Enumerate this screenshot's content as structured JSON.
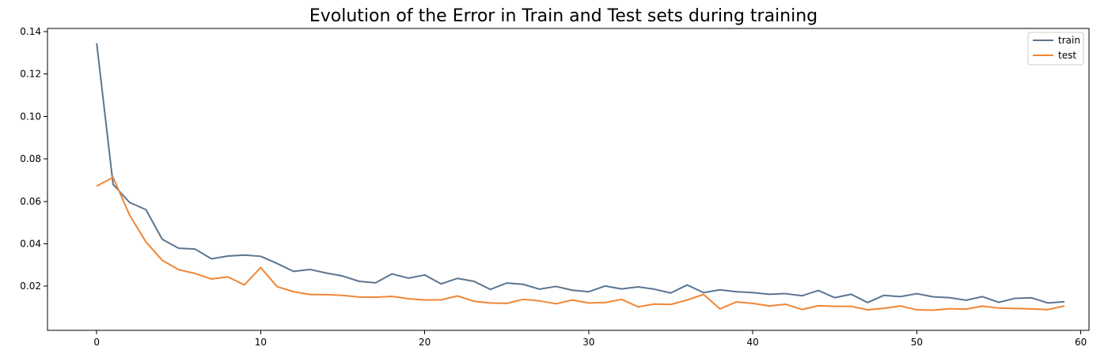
{
  "chart_data": {
    "type": "line",
    "title": "Evolution of the Error in Train and Test sets during training",
    "xlabel": "",
    "ylabel": "",
    "xlim": [
      -3,
      60.5
    ],
    "ylim": [
      -0.0008,
      0.1415
    ],
    "xticks": [
      0,
      10,
      20,
      30,
      40,
      50,
      60
    ],
    "xtick_labels": [
      "0",
      "10",
      "20",
      "30",
      "40",
      "50",
      "60"
    ],
    "yticks": [
      0.02,
      0.04,
      0.06,
      0.08,
      0.1,
      0.12,
      0.14
    ],
    "ytick_labels": [
      "0.02",
      "0.04",
      "0.06",
      "0.08",
      "0.10",
      "0.12",
      "0.14"
    ],
    "grid": false,
    "legend_position": "top-right",
    "x": [
      0,
      1,
      2,
      3,
      4,
      5,
      6,
      7,
      8,
      9,
      10,
      11,
      12,
      13,
      14,
      15,
      16,
      17,
      18,
      19,
      20,
      21,
      22,
      23,
      24,
      25,
      26,
      27,
      28,
      29,
      30,
      31,
      32,
      33,
      34,
      35,
      36,
      37,
      38,
      39,
      40,
      41,
      42,
      43,
      44,
      45,
      46,
      47,
      48,
      49,
      50,
      51,
      52,
      53,
      54,
      55,
      56,
      57,
      58,
      59
    ],
    "series": [
      {
        "name": "train",
        "color": "#5b7590",
        "values": [
          0.1345,
          0.068,
          0.0595,
          0.0561,
          0.0421,
          0.0379,
          0.0375,
          0.0329,
          0.0342,
          0.0347,
          0.0341,
          0.0307,
          0.027,
          0.0279,
          0.0262,
          0.0248,
          0.0223,
          0.0216,
          0.0258,
          0.0238,
          0.0253,
          0.0211,
          0.0237,
          0.0223,
          0.0185,
          0.0215,
          0.0209,
          0.0186,
          0.0199,
          0.0181,
          0.0174,
          0.0201,
          0.0187,
          0.0197,
          0.0186,
          0.0168,
          0.0206,
          0.017,
          0.0183,
          0.0174,
          0.017,
          0.0162,
          0.0165,
          0.0155,
          0.018,
          0.0146,
          0.0162,
          0.0123,
          0.0157,
          0.0151,
          0.0165,
          0.015,
          0.0146,
          0.0134,
          0.0151,
          0.0124,
          0.0143,
          0.0145,
          0.0121,
          0.0127
        ]
      },
      {
        "name": "test",
        "color": "#ef8636",
        "values": [
          0.0672,
          0.0713,
          0.0536,
          0.0409,
          0.0322,
          0.0278,
          0.026,
          0.0234,
          0.0244,
          0.0206,
          0.0288,
          0.0198,
          0.0174,
          0.0161,
          0.016,
          0.0157,
          0.0149,
          0.0148,
          0.0152,
          0.0141,
          0.0135,
          0.0136,
          0.0154,
          0.0129,
          0.0121,
          0.0119,
          0.0138,
          0.0131,
          0.0117,
          0.0135,
          0.0121,
          0.0123,
          0.0138,
          0.0103,
          0.0116,
          0.0114,
          0.0135,
          0.0161,
          0.0093,
          0.0126,
          0.0119,
          0.0107,
          0.0115,
          0.009,
          0.0108,
          0.0105,
          0.0105,
          0.0089,
          0.0096,
          0.0107,
          0.0089,
          0.0087,
          0.0094,
          0.0092,
          0.0106,
          0.0097,
          0.0095,
          0.0093,
          0.009,
          0.0107
        ]
      }
    ]
  }
}
